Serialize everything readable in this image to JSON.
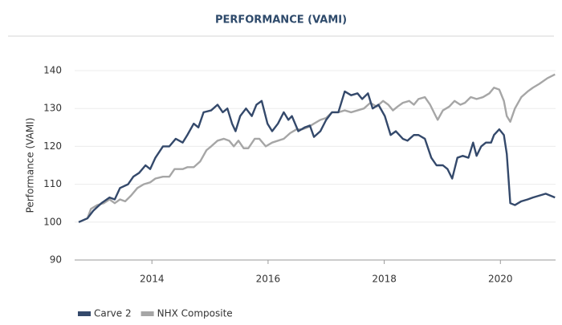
{
  "chart_data": {
    "type": "line",
    "title": "PERFORMANCE (VAMI)",
    "y_label": "Performance (VAMI)",
    "xlim": [
      2012.67,
      2020.95
    ],
    "xticks": [
      2014,
      2016,
      2018,
      2020
    ],
    "ylim": [
      90,
      140
    ],
    "yticks": [
      90,
      100,
      110,
      120,
      130,
      140
    ],
    "grid": true,
    "legend": "bottom-left",
    "series": [
      {
        "name": "Carve 2",
        "color": "#34496b",
        "x": [
          2012.74,
          2012.89,
          2012.99,
          2013.13,
          2013.27,
          2013.36,
          2013.45,
          2013.59,
          2013.68,
          2013.78,
          2013.89,
          2013.97,
          2014.06,
          2014.19,
          2014.3,
          2014.41,
          2014.53,
          2014.61,
          2014.72,
          2014.8,
          2014.89,
          2015.02,
          2015.13,
          2015.22,
          2015.3,
          2015.38,
          2015.44,
          2015.52,
          2015.62,
          2015.72,
          2015.8,
          2015.89,
          2015.99,
          2016.07,
          2016.17,
          2016.27,
          2016.35,
          2016.41,
          2016.52,
          2016.63,
          2016.72,
          2016.79,
          2016.9,
          2017.0,
          2017.1,
          2017.21,
          2017.32,
          2017.43,
          2017.54,
          2017.62,
          2017.72,
          2017.8,
          2017.9,
          2018.01,
          2018.11,
          2018.2,
          2018.32,
          2018.4,
          2018.51,
          2018.59,
          2018.7,
          2018.81,
          2018.9,
          2019.01,
          2019.09,
          2019.17,
          2019.26,
          2019.35,
          2019.45,
          2019.53,
          2019.59,
          2019.67,
          2019.75,
          2019.84,
          2019.89,
          2019.98,
          2020.06,
          2020.11,
          2020.17,
          2020.25,
          2020.36,
          2020.47,
          2020.56,
          2020.67,
          2020.78,
          2020.94
        ],
        "values": [
          100,
          101,
          103,
          105,
          106.5,
          106,
          109,
          110,
          112,
          113,
          115,
          114,
          117,
          120,
          120,
          122,
          121,
          123,
          126,
          125,
          129,
          129.5,
          131,
          129,
          130,
          126,
          124,
          128,
          130,
          128,
          131,
          132,
          126,
          124,
          126,
          129,
          127,
          128,
          124,
          125,
          125.5,
          122.5,
          124,
          127,
          129,
          129,
          134.5,
          133.5,
          134,
          132.5,
          134,
          130,
          131,
          128,
          123,
          124,
          122,
          121.5,
          123,
          123,
          122,
          117,
          115,
          115,
          114,
          111.5,
          117,
          117.5,
          117,
          121,
          117.5,
          120,
          121,
          121,
          123,
          124.5,
          123,
          118,
          105,
          104.5,
          105.5,
          106,
          106.5,
          107,
          107.5,
          106.5
        ]
      },
      {
        "name": "NHX Composite",
        "color": "#a6a6a6",
        "x": [
          2012.74,
          2012.89,
          2012.95,
          2013.06,
          2013.17,
          2013.27,
          2013.36,
          2013.45,
          2013.54,
          2013.64,
          2013.75,
          2013.86,
          2013.97,
          2014.06,
          2014.19,
          2014.3,
          2014.39,
          2014.53,
          2014.61,
          2014.72,
          2014.83,
          2014.94,
          2015.02,
          2015.13,
          2015.24,
          2015.33,
          2015.41,
          2015.49,
          2015.58,
          2015.66,
          2015.77,
          2015.85,
          2015.96,
          2016.07,
          2016.17,
          2016.27,
          2016.38,
          2016.49,
          2016.59,
          2016.68,
          2016.79,
          2016.9,
          2017.0,
          2017.1,
          2017.21,
          2017.32,
          2017.43,
          2017.54,
          2017.65,
          2017.76,
          2017.87,
          2017.98,
          2018.07,
          2018.15,
          2018.23,
          2018.32,
          2018.43,
          2018.51,
          2018.59,
          2018.7,
          2018.79,
          2018.87,
          2018.92,
          2019.01,
          2019.12,
          2019.21,
          2019.31,
          2019.39,
          2019.49,
          2019.59,
          2019.7,
          2019.81,
          2019.89,
          2019.98,
          2020.06,
          2020.11,
          2020.17,
          2020.25,
          2020.36,
          2020.47,
          2020.56,
          2020.67,
          2020.81,
          2020.94
        ],
        "values": [
          100,
          101,
          103.5,
          104.5,
          105,
          106,
          105,
          106,
          105.5,
          107,
          109,
          110,
          110.5,
          111.5,
          112,
          112,
          114,
          114,
          114.5,
          114.5,
          116,
          119,
          120,
          121.5,
          122,
          121.5,
          120,
          121.5,
          119.5,
          119.5,
          122,
          122,
          120,
          121,
          121.5,
          122,
          123.5,
          124.5,
          124.5,
          125,
          126,
          127,
          127.5,
          129,
          129,
          129.5,
          129,
          129.5,
          130,
          131.5,
          130.5,
          132,
          131,
          129.5,
          130.5,
          131.5,
          132,
          131,
          132.5,
          133,
          131,
          128.5,
          127,
          129.5,
          130.5,
          132,
          131,
          131.5,
          133,
          132.5,
          133,
          134,
          135.5,
          135,
          132,
          128,
          126.5,
          130,
          133,
          134.5,
          135.5,
          136.5,
          138,
          139
        ]
      }
    ]
  }
}
